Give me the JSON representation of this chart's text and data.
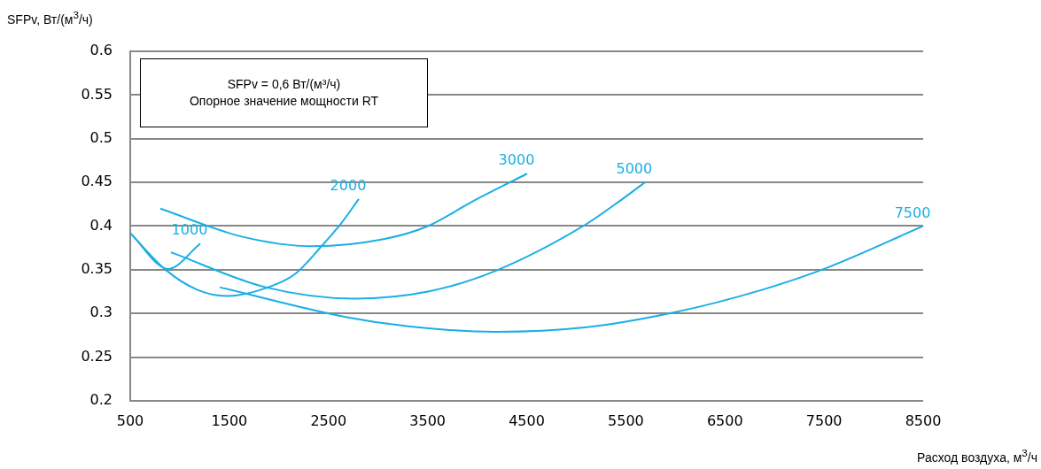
{
  "chart_data": {
    "type": "line",
    "xlabel": "Расход воздуха, м$^{3}$/ч",
    "ylabel": "SFPv, Вт/(м$^{3}$/ч)",
    "annotations": [
      "SFPv = 0,6 Вт/(м³/ч)",
      "Опорное значение мощности RT"
    ],
    "xlim": [
      500,
      8500
    ],
    "xticks": [
      500,
      1500,
      2500,
      3500,
      4500,
      5500,
      6500,
      7500,
      8500
    ],
    "ylim": [
      0.2,
      0.6
    ],
    "yticks": [
      0.2,
      0.25,
      0.3,
      0.35,
      0.4,
      0.45,
      0.5,
      0.55,
      0.6
    ],
    "grid": "y",
    "legend": false,
    "marker": "none",
    "line_style": "solid",
    "series": [
      {
        "name": "1000",
        "color": "#1aaee5",
        "x": [
          500,
          884,
          1206
        ],
        "values": [
          0.392,
          0.351,
          0.38
        ]
      },
      {
        "name": "2000",
        "color": "#1aaee5",
        "x": [
          500,
          857,
          1179,
          1483,
          1867,
          2162,
          2430,
          2627,
          2806
        ],
        "values": [
          0.392,
          0.35,
          0.327,
          0.32,
          0.329,
          0.345,
          0.377,
          0.403,
          0.431
        ]
      },
      {
        "name": "3000",
        "color": "#1aaee5",
        "x": [
          804,
          1626,
          2341,
          3056,
          3503,
          3950,
          4504
        ],
        "values": [
          0.42,
          0.388,
          0.377,
          0.385,
          0.4,
          0.428,
          0.46
        ]
      },
      {
        "name": "5000",
        "color": "#1aaee5",
        "x": [
          911,
          1867,
          2761,
          3503,
          4191,
          5084,
          5442,
          5692
        ],
        "values": [
          0.37,
          0.33,
          0.317,
          0.325,
          0.349,
          0.401,
          0.429,
          0.45
        ]
      },
      {
        "name": "7500",
        "color": "#1aaee5",
        "x": [
          1403,
          2672,
          3324,
          4191,
          5084,
          5978,
          6872,
          7524,
          8500
        ],
        "values": [
          0.33,
          0.296,
          0.285,
          0.279,
          0.284,
          0.301,
          0.327,
          0.352,
          0.4
        ]
      }
    ]
  }
}
